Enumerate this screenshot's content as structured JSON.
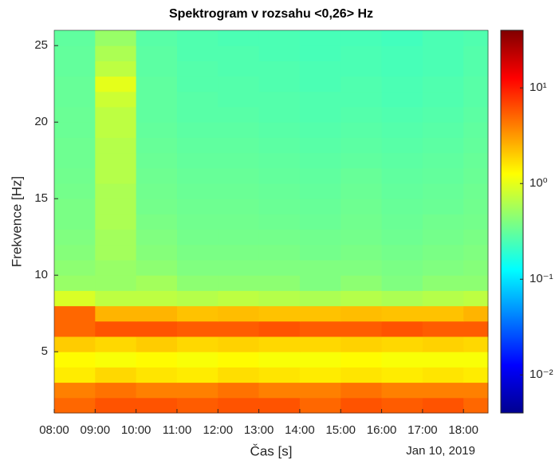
{
  "chart_data": {
    "type": "heatmap",
    "title": "Spektrogram v rozsahu <0,26> Hz",
    "x_label": "Čas [s]",
    "x_secondary_label": "Jan 10, 2019",
    "y_label": "Frekvence [Hz]",
    "xlim": [
      8,
      18.6
    ],
    "xticks": [
      {
        "value": 8,
        "label": "08:00"
      },
      {
        "value": 9,
        "label": "09:00"
      },
      {
        "value": 10,
        "label": "10:00"
      },
      {
        "value": 11,
        "label": "11:00"
      },
      {
        "value": 12,
        "label": "12:00"
      },
      {
        "value": 13,
        "label": "13:00"
      },
      {
        "value": 14,
        "label": "14:00"
      },
      {
        "value": 15,
        "label": "15:00"
      },
      {
        "value": 16,
        "label": "16:00"
      },
      {
        "value": 17,
        "label": "17:00"
      },
      {
        "value": 18,
        "label": "18:00"
      }
    ],
    "ylim": [
      1,
      26
    ],
    "yticks": [
      5,
      10,
      15,
      20,
      25
    ],
    "x_bins": [
      8,
      9,
      10,
      11,
      12,
      13,
      14,
      15,
      16,
      17,
      18,
      18.6
    ],
    "y_bins": [
      1,
      2,
      3,
      4,
      5,
      6,
      7,
      8,
      9,
      10,
      11,
      12,
      13,
      14,
      15,
      16,
      17,
      18,
      19,
      20,
      21,
      22,
      23,
      24,
      25,
      26
    ],
    "colormap": "jet",
    "color_scale": "log",
    "clim": [
      0.004,
      40
    ],
    "cticks": [
      {
        "value": 0.01,
        "label": "10⁻²"
      },
      {
        "value": 0.1,
        "label": "10⁻¹"
      },
      {
        "value": 1,
        "label": "10⁰"
      },
      {
        "value": 10,
        "label": "10¹"
      }
    ],
    "values": [
      [
        5,
        6,
        6,
        5.5,
        6,
        6,
        5,
        6,
        5.5,
        6,
        5
      ],
      [
        4,
        4.5,
        4,
        4,
        4.5,
        4,
        4,
        4.5,
        4,
        4,
        4
      ],
      [
        1.5,
        1.8,
        1.6,
        1.5,
        1.7,
        1.6,
        1.5,
        1.6,
        1.5,
        1.6,
        1.5
      ],
      [
        1.3,
        1.2,
        1.3,
        1.2,
        1.3,
        1.2,
        1.2,
        1.3,
        1.2,
        1.2,
        1.2
      ],
      [
        2,
        1.8,
        2,
        1.8,
        1.9,
        1.8,
        1.8,
        1.9,
        1.8,
        1.9,
        1.8
      ],
      [
        5,
        6,
        6,
        5.5,
        5.5,
        6,
        5.5,
        5.5,
        6,
        5.5,
        5.5
      ],
      [
        5,
        2.5,
        2.5,
        2.2,
        2.3,
        2.2,
        2.2,
        2.3,
        2.2,
        2.2,
        2.5
      ],
      [
        0.9,
        0.7,
        0.7,
        0.65,
        0.7,
        0.65,
        0.6,
        0.65,
        0.6,
        0.65,
        0.7
      ],
      [
        0.5,
        0.5,
        0.55,
        0.45,
        0.45,
        0.45,
        0.4,
        0.45,
        0.4,
        0.45,
        0.45
      ],
      [
        0.45,
        0.5,
        0.45,
        0.4,
        0.4,
        0.4,
        0.4,
        0.4,
        0.38,
        0.4,
        0.42
      ],
      [
        0.42,
        0.55,
        0.42,
        0.38,
        0.38,
        0.38,
        0.36,
        0.38,
        0.36,
        0.38,
        0.4
      ],
      [
        0.4,
        0.55,
        0.4,
        0.36,
        0.36,
        0.36,
        0.35,
        0.36,
        0.34,
        0.36,
        0.38
      ],
      [
        0.38,
        0.6,
        0.38,
        0.35,
        0.35,
        0.34,
        0.33,
        0.35,
        0.33,
        0.35,
        0.36
      ],
      [
        0.38,
        0.6,
        0.36,
        0.34,
        0.34,
        0.33,
        0.32,
        0.34,
        0.32,
        0.33,
        0.35
      ],
      [
        0.36,
        0.6,
        0.35,
        0.33,
        0.33,
        0.32,
        0.31,
        0.33,
        0.31,
        0.32,
        0.34
      ],
      [
        0.35,
        0.65,
        0.34,
        0.32,
        0.32,
        0.31,
        0.3,
        0.32,
        0.3,
        0.31,
        0.33
      ],
      [
        0.34,
        0.65,
        0.33,
        0.31,
        0.31,
        0.3,
        0.29,
        0.3,
        0.29,
        0.3,
        0.32
      ],
      [
        0.34,
        0.65,
        0.32,
        0.3,
        0.3,
        0.29,
        0.28,
        0.29,
        0.28,
        0.29,
        0.31
      ],
      [
        0.33,
        0.7,
        0.31,
        0.29,
        0.29,
        0.28,
        0.27,
        0.28,
        0.27,
        0.28,
        0.3
      ],
      [
        0.33,
        0.7,
        0.3,
        0.28,
        0.28,
        0.27,
        0.26,
        0.27,
        0.26,
        0.27,
        0.29
      ],
      [
        0.32,
        0.8,
        0.3,
        0.28,
        0.27,
        0.27,
        0.26,
        0.26,
        0.25,
        0.26,
        0.28
      ],
      [
        0.32,
        1.0,
        0.3,
        0.27,
        0.27,
        0.26,
        0.25,
        0.26,
        0.25,
        0.26,
        0.28
      ],
      [
        0.31,
        0.7,
        0.29,
        0.27,
        0.26,
        0.26,
        0.25,
        0.25,
        0.24,
        0.25,
        0.27
      ],
      [
        0.31,
        0.6,
        0.29,
        0.26,
        0.26,
        0.25,
        0.24,
        0.25,
        0.24,
        0.25,
        0.27
      ],
      [
        0.3,
        0.5,
        0.28,
        0.26,
        0.25,
        0.25,
        0.24,
        0.24,
        0.23,
        0.25,
        0.26
      ]
    ]
  }
}
